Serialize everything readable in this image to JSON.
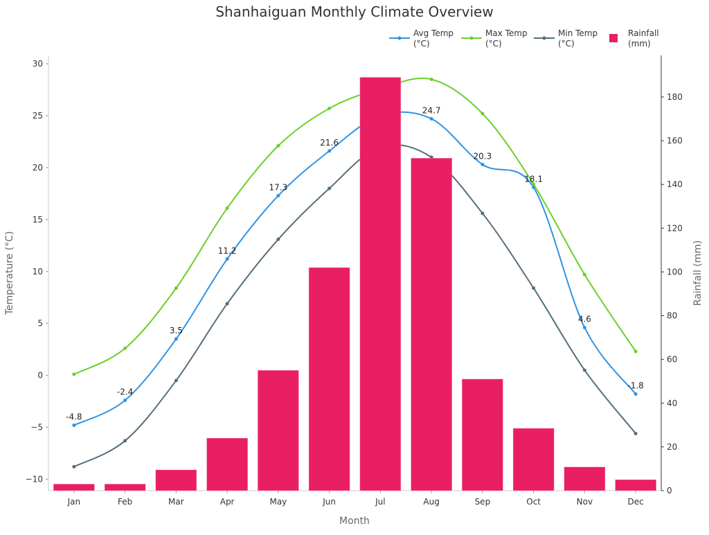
{
  "chart_data": {
    "type": "bar+line",
    "title": "Shanhaiguan Monthly Climate Overview",
    "xlabel": "Month",
    "ylabel_left": "Temperature (°C)",
    "ylabel_right": "Rainfall (mm)",
    "categories": [
      "Jan",
      "Feb",
      "Mar",
      "Apr",
      "May",
      "Jun",
      "Jul",
      "Aug",
      "Sep",
      "Oct",
      "Nov",
      "Dec"
    ],
    "ylim_left": [
      -11.1,
      30.8
    ],
    "ylim_right": [
      0,
      199
    ],
    "yticks_left": [
      -10,
      -5,
      0,
      5,
      10,
      15,
      20,
      25,
      30
    ],
    "yticks_right": [
      0,
      20,
      40,
      60,
      80,
      100,
      120,
      140,
      160,
      180
    ],
    "grid": false,
    "legend_placement": "top-right",
    "series": [
      {
        "name": "Avg Temp\n(°C)",
        "type": "line",
        "axis": "left",
        "color": "#2e93e6",
        "values": [
          -4.8,
          -2.4,
          3.5,
          11.2,
          17.3,
          21.6,
          25.0,
          24.7,
          20.3,
          18.1,
          4.6,
          -1.8
        ],
        "labels": [
          "-4.8",
          "-2.4",
          "3.5",
          "11.2",
          "17.3",
          "21.6",
          "",
          "24.7",
          "20.3",
          "18.1",
          "4.6",
          "-1.8"
        ]
      },
      {
        "name": "Max Temp\n(°C)",
        "type": "line",
        "axis": "left",
        "color": "#66d12a",
        "values": [
          0.1,
          2.6,
          8.4,
          16.1,
          22.1,
          25.7,
          27.6,
          28.5,
          25.2,
          18.4,
          9.7,
          2.3
        ]
      },
      {
        "name": "Min Temp\n(°C)",
        "type": "line",
        "axis": "left",
        "color": "#546e7a",
        "values": [
          -8.8,
          -6.3,
          -0.5,
          6.9,
          13.1,
          18.0,
          22.0,
          21.0,
          15.6,
          8.4,
          0.5,
          -5.6
        ]
      },
      {
        "name": "Rainfall\n(mm)",
        "type": "bar",
        "axis": "right",
        "color": "#e91e63",
        "values": [
          3,
          3,
          9.5,
          24,
          55,
          102,
          189,
          152,
          51,
          28.5,
          10.8,
          5
        ]
      }
    ]
  }
}
